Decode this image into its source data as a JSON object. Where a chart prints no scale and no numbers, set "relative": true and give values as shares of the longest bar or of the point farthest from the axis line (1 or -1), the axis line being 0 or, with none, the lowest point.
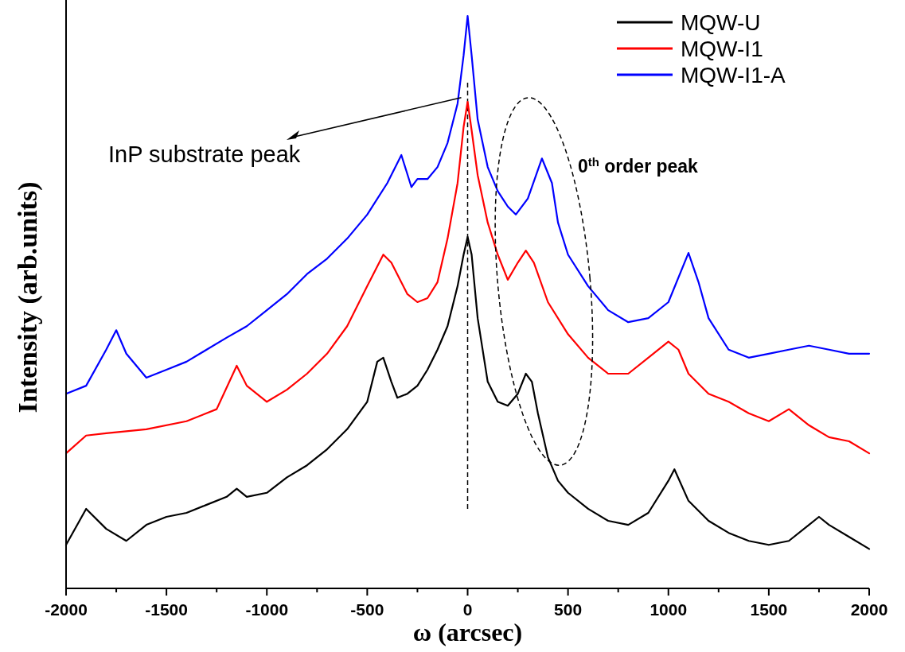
{
  "chart_data": {
    "type": "line",
    "relative": true,
    "xlabel": "ω (arcsec)",
    "ylabel": "Intensity (arb.units)",
    "xlim": [
      -2000,
      2000
    ],
    "xticks": [
      -2000,
      {
        "value": -1750,
        "label": null
      },
      -1500,
      {
        "value": -1250,
        "label": null
      },
      -1000,
      {
        "value": -750,
        "label": null
      },
      -500,
      {
        "value": -250,
        "label": null
      },
      0,
      {
        "value": 250,
        "label": null
      },
      500,
      {
        "value": 750,
        "label": null
      },
      1000,
      {
        "value": 1250,
        "label": null
      },
      1500,
      {
        "value": 1750,
        "label": null
      },
      2000
    ],
    "legend": "top right",
    "line_style": "solid",
    "ref_lines": [
      {
        "axis": "x",
        "value": 0,
        "label": null,
        "line_style": "dashed",
        "color": "#000000"
      }
    ],
    "annotations": [
      "InP substrate peak",
      "0$^{th}$ order peak"
    ],
    "series": [
      {
        "name": "MQW-U",
        "color": "#000000",
        "x": [
          -2000,
          -1900,
          -1800,
          -1700,
          -1600,
          -1500,
          -1400,
          -1300,
          -1200,
          -1150,
          -1100,
          -1000,
          -900,
          -800,
          -700,
          -600,
          -500,
          -450,
          -420,
          -380,
          -350,
          -300,
          -250,
          -200,
          -150,
          -100,
          -50,
          -20,
          0,
          20,
          50,
          100,
          150,
          200,
          250,
          290,
          320,
          350,
          400,
          450,
          500,
          600,
          700,
          800,
          900,
          1000,
          1030,
          1100,
          1200,
          1300,
          1400,
          1500,
          1600,
          1700,
          1750,
          1800,
          1900,
          2000
        ],
        "values": [
          0.076,
          0.139,
          0.104,
          0.083,
          0.111,
          0.125,
          0.132,
          0.146,
          0.16,
          0.174,
          0.16,
          0.167,
          0.194,
          0.215,
          0.243,
          0.278,
          0.326,
          0.396,
          0.403,
          0.361,
          0.333,
          0.34,
          0.354,
          0.382,
          0.417,
          0.458,
          0.528,
          0.583,
          0.614,
          0.583,
          0.472,
          0.361,
          0.326,
          0.319,
          0.34,
          0.375,
          0.361,
          0.306,
          0.229,
          0.188,
          0.167,
          0.139,
          0.118,
          0.111,
          0.132,
          0.188,
          0.208,
          0.153,
          0.118,
          0.097,
          0.083,
          0.076,
          0.083,
          0.111,
          0.125,
          0.111,
          0.09,
          0.069
        ]
      },
      {
        "name": "MQW-I1",
        "color": "#ff0000",
        "x": [
          -2000,
          -1900,
          -1800,
          -1600,
          -1400,
          -1250,
          -1150,
          -1100,
          -1000,
          -900,
          -800,
          -700,
          -600,
          -500,
          -420,
          -380,
          -300,
          -250,
          -200,
          -150,
          -100,
          -50,
          -20,
          0,
          20,
          50,
          100,
          150,
          200,
          250,
          290,
          330,
          400,
          500,
          600,
          700,
          800,
          900,
          1000,
          1050,
          1100,
          1200,
          1300,
          1400,
          1500,
          1600,
          1700,
          1800,
          1900,
          2000
        ],
        "values": [
          0.236,
          0.267,
          0.271,
          0.278,
          0.292,
          0.313,
          0.389,
          0.354,
          0.326,
          0.347,
          0.375,
          0.41,
          0.458,
          0.528,
          0.583,
          0.569,
          0.514,
          0.5,
          0.507,
          0.535,
          0.611,
          0.708,
          0.806,
          0.85,
          0.8,
          0.722,
          0.639,
          0.583,
          0.539,
          0.569,
          0.59,
          0.569,
          0.5,
          0.444,
          0.403,
          0.375,
          0.375,
          0.403,
          0.431,
          0.417,
          0.375,
          0.34,
          0.326,
          0.306,
          0.292,
          0.313,
          0.285,
          0.264,
          0.257,
          0.236
        ]
      },
      {
        "name": "MQW-I1-A",
        "color": "#0000ff",
        "x": [
          -2000,
          -1900,
          -1800,
          -1750,
          -1700,
          -1600,
          -1500,
          -1400,
          -1300,
          -1200,
          -1100,
          -1000,
          -900,
          -800,
          -700,
          -600,
          -500,
          -400,
          -330,
          -280,
          -250,
          -200,
          -150,
          -100,
          -50,
          -20,
          0,
          20,
          50,
          100,
          150,
          200,
          240,
          300,
          370,
          420,
          450,
          500,
          600,
          700,
          800,
          900,
          1000,
          1100,
          1150,
          1200,
          1300,
          1400,
          1500,
          1600,
          1700,
          1800,
          1900,
          2000
        ],
        "values": [
          0.34,
          0.354,
          0.417,
          0.451,
          0.41,
          0.368,
          0.382,
          0.396,
          0.417,
          0.438,
          0.458,
          0.486,
          0.514,
          0.549,
          0.576,
          0.611,
          0.653,
          0.708,
          0.757,
          0.701,
          0.715,
          0.715,
          0.736,
          0.778,
          0.847,
          0.931,
          1,
          0.931,
          0.819,
          0.736,
          0.694,
          0.667,
          0.653,
          0.681,
          0.751,
          0.708,
          0.639,
          0.583,
          0.528,
          0.486,
          0.465,
          0.472,
          0.5,
          0.586,
          0.535,
          0.472,
          0.417,
          0.403,
          0.41,
          0.417,
          0.424,
          0.417,
          0.41,
          0.41
        ]
      }
    ]
  }
}
